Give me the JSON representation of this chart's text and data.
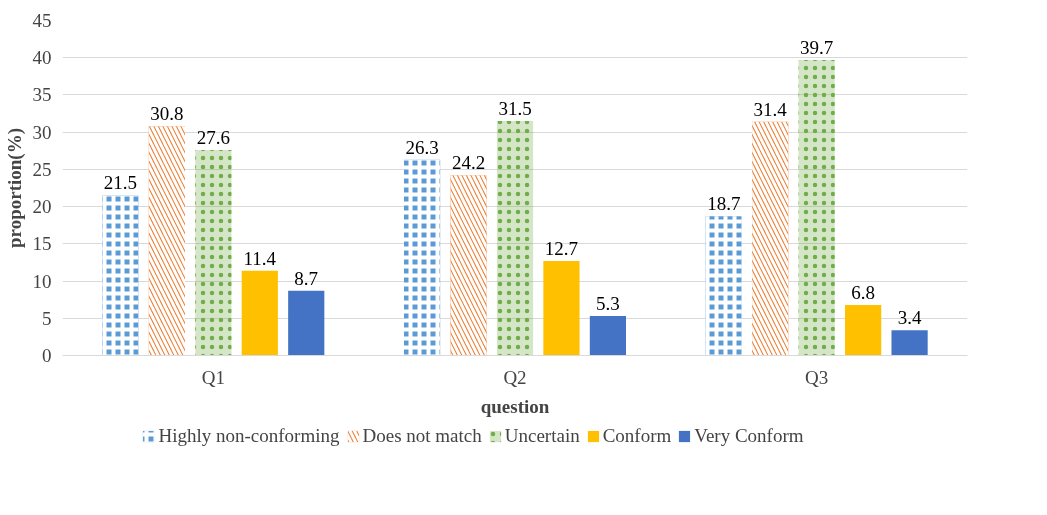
{
  "chart_data": {
    "type": "bar",
    "xlabel": "question",
    "ylabel": "proportion(%)",
    "categories": [
      "Q1",
      "Q2",
      "Q3"
    ],
    "series": [
      {
        "name": "Highly non-conforming",
        "color": "#5b9bd5",
        "values": [
          21.5,
          26.3,
          18.7
        ]
      },
      {
        "name": "Does not match",
        "color": "#ed7d31",
        "values": [
          30.8,
          24.2,
          31.4
        ]
      },
      {
        "name": "Uncertain",
        "color": "#70ad47",
        "values": [
          27.6,
          31.5,
          39.7
        ]
      },
      {
        "name": "Conform",
        "color": "#ffc000",
        "values": [
          11.4,
          12.7,
          6.8
        ]
      },
      {
        "name": "Very Conform",
        "color": "#4472c4",
        "values": [
          8.7,
          5.3,
          3.4
        ]
      }
    ],
    "ylim": [
      0,
      45
    ],
    "yticks": [
      0,
      5,
      10,
      15,
      20,
      25,
      30,
      35,
      40,
      45
    ],
    "grid": "y",
    "legend": "bottom",
    "data_labels": true
  }
}
